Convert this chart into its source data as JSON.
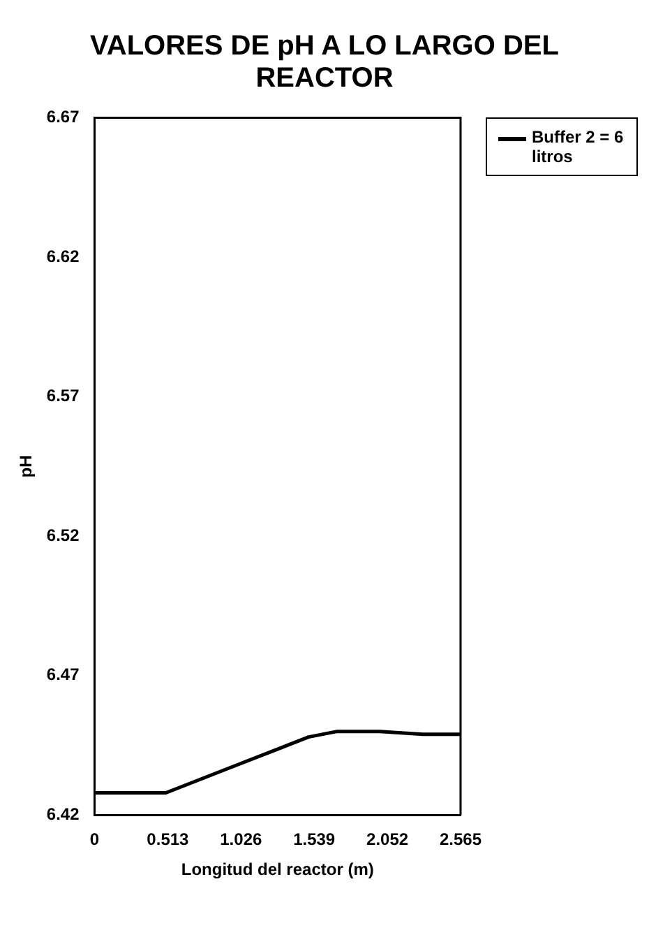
{
  "chart_data": {
    "type": "line",
    "title": "VALORES DE pH A LO LARGO DEL REACTOR",
    "xlabel": "Longitud del reactor (m)",
    "ylabel": "pH",
    "x": [
      0,
      0.25,
      0.5,
      0.6,
      0.8,
      1.0,
      1.25,
      1.5,
      1.7,
      2.0,
      2.3,
      2.565
    ],
    "series": [
      {
        "name": "Buffer 2 = 6 litros",
        "color": "#000000",
        "values": [
          6.428,
          6.428,
          6.428,
          6.43,
          6.434,
          6.438,
          6.443,
          6.448,
          6.45,
          6.45,
          6.449,
          6.449
        ]
      }
    ],
    "xlim": [
      0,
      2.565
    ],
    "xticks": [
      0,
      0.513,
      1.026,
      1.539,
      2.052,
      2.565
    ],
    "ylim": [
      6.42,
      6.67
    ],
    "yticks": [
      6.42,
      6.47,
      6.52,
      6.57,
      6.62,
      6.67
    ],
    "grid": false,
    "legend": "right",
    "marker": "none",
    "line_style": "solid"
  }
}
